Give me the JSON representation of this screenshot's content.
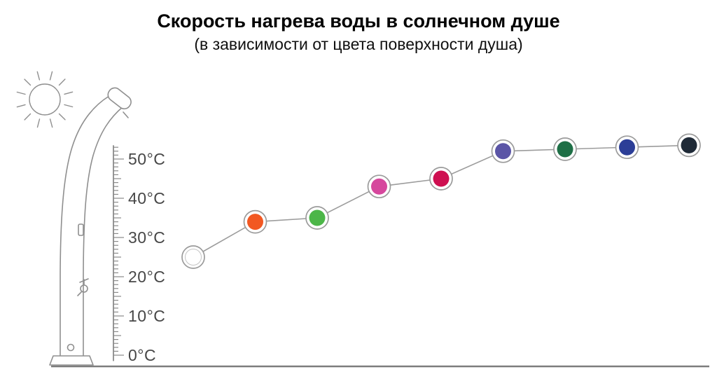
{
  "header": {
    "title": "Скорость нагрева воды в солнечном душе",
    "subtitle": "(в зависимости от цвета поверхности душа)"
  },
  "chart_data": {
    "type": "line",
    "title": "Скорость нагрева воды в солнечном душе",
    "subtitle": "(в зависимости от цвета поверхности душа)",
    "xlabel": "",
    "ylabel": "",
    "ylim": [
      0,
      55
    ],
    "grid": false,
    "legend": false,
    "y_ticks": [
      {
        "value": 0,
        "label": "0°C"
      },
      {
        "value": 10,
        "label": "10°C"
      },
      {
        "value": 20,
        "label": "20°C"
      },
      {
        "value": 30,
        "label": "30°C"
      },
      {
        "value": 40,
        "label": "40°C"
      },
      {
        "value": 50,
        "label": "50°C"
      }
    ],
    "points": [
      {
        "name": "white",
        "color": "#ffffff",
        "value_c": 25
      },
      {
        "name": "orange",
        "color": "#f25822",
        "value_c": 34
      },
      {
        "name": "green",
        "color": "#4cb648",
        "value_c": 35
      },
      {
        "name": "magenta",
        "color": "#d6479d",
        "value_c": 43
      },
      {
        "name": "crimson",
        "color": "#ce0f50",
        "value_c": 45
      },
      {
        "name": "violet",
        "color": "#5b55a6",
        "value_c": 52
      },
      {
        "name": "dark-green",
        "color": "#1e6f46",
        "value_c": 52.5
      },
      {
        "name": "blue",
        "color": "#2c3e97",
        "value_c": 53
      },
      {
        "name": "dark-navy",
        "color": "#1f2a37",
        "value_c": 53.5
      }
    ],
    "colors": {
      "line": "#9c9c9c",
      "axis": "#7d7d7d",
      "ruler": "#8a8a8a",
      "text": "#474747"
    }
  }
}
